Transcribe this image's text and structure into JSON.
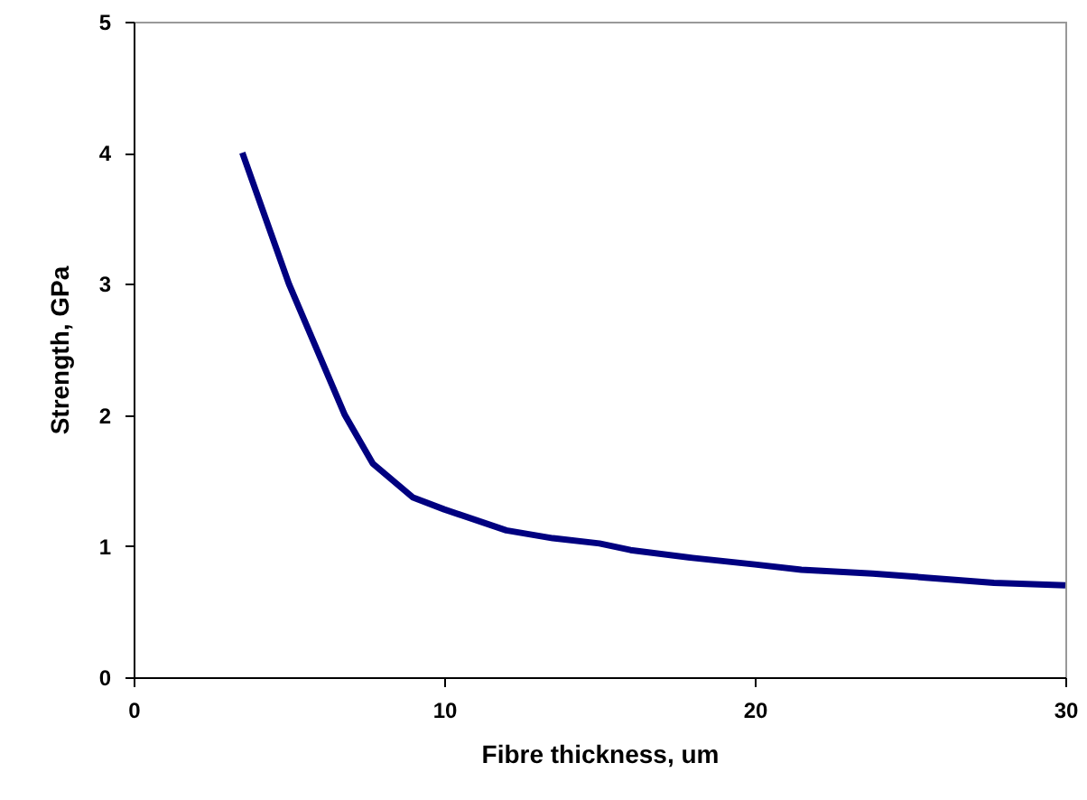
{
  "chart_data": {
    "type": "line",
    "xlabel": "Fibre thickness, um",
    "ylabel": "Strength, GPa",
    "x": [
      3.5,
      5,
      6.8,
      7.7,
      9,
      10,
      12,
      13.5,
      15,
      16,
      18,
      20,
      21.5,
      23.8,
      25.5,
      27.7,
      30
    ],
    "series": [
      {
        "color": "#000080",
        "values": [
          4.0,
          3.0,
          2.0,
          1.63,
          1.37,
          1.28,
          1.12,
          1.06,
          1.02,
          0.97,
          0.91,
          0.86,
          0.82,
          0.79,
          0.76,
          0.72,
          0.7
        ]
      }
    ],
    "xlim": [
      0,
      30
    ],
    "xticks": [
      0,
      10,
      20,
      30
    ],
    "ylim": [
      0,
      5
    ],
    "yticks": [
      0,
      1,
      2,
      3,
      4,
      5
    ],
    "grid": false,
    "marker": "none",
    "line_style": "solid"
  }
}
